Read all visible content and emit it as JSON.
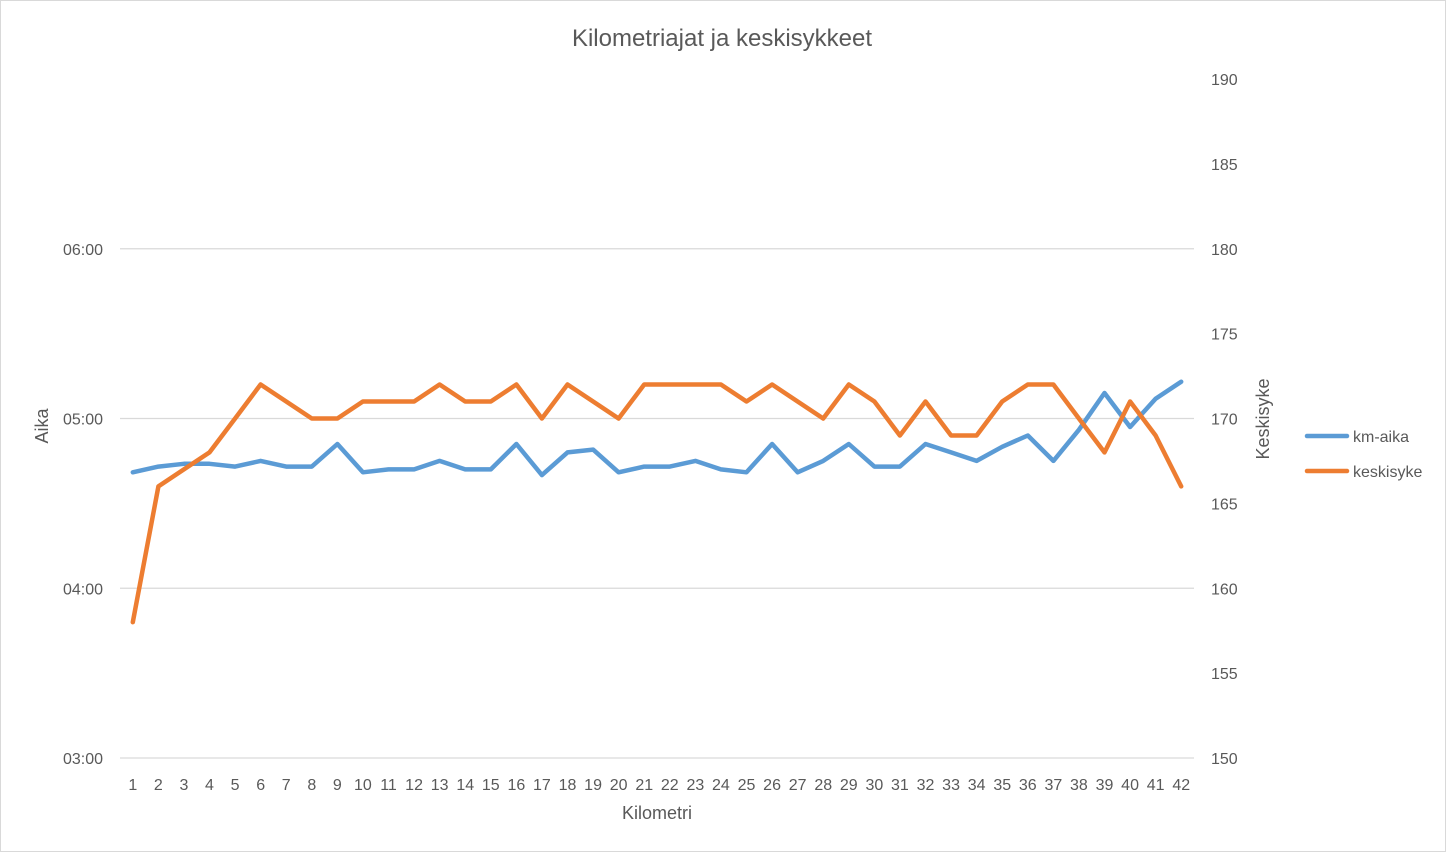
{
  "chart_data": {
    "type": "line",
    "title": "Kilometriajat ja keskisykkeet",
    "xlabel": "Kilometri",
    "ylabel": "Aika",
    "y2label": "Keskisyke",
    "x": [
      1,
      2,
      3,
      4,
      5,
      6,
      7,
      8,
      9,
      10,
      11,
      12,
      13,
      14,
      15,
      16,
      17,
      18,
      19,
      20,
      21,
      22,
      23,
      24,
      25,
      26,
      27,
      28,
      29,
      30,
      31,
      32,
      33,
      34,
      35,
      36,
      37,
      38,
      39,
      40,
      41,
      42
    ],
    "y_ticks": [
      "03:00",
      "04:00",
      "05:00",
      "06:00"
    ],
    "y_range_seconds": [
      180,
      420
    ],
    "y2_ticks": [
      150,
      155,
      160,
      165,
      170,
      175,
      180,
      185,
      190
    ],
    "y2_range": [
      150,
      190
    ],
    "legend_position": "right",
    "grid": "horizontal",
    "series": [
      {
        "name": "km-aika",
        "axis": "left",
        "color": "#5b9bd5",
        "values_seconds": [
          281,
          283,
          284,
          284,
          283,
          285,
          283,
          283,
          291,
          281,
          282,
          282,
          285,
          282,
          282,
          291,
          280,
          288,
          289,
          281,
          283,
          283,
          285,
          282,
          281,
          291,
          281,
          285,
          291,
          283,
          283,
          291,
          288,
          285,
          290,
          294,
          285,
          296,
          309,
          297,
          307,
          313
        ]
      },
      {
        "name": "keskisyke",
        "axis": "right",
        "color": "#ed7d31",
        "values": [
          158,
          166,
          167,
          168,
          170,
          172,
          171,
          170,
          170,
          171,
          171,
          171,
          172,
          171,
          171,
          172,
          170,
          172,
          171,
          170,
          172,
          172,
          172,
          172,
          171,
          172,
          171,
          170,
          172,
          171,
          169,
          171,
          169,
          169,
          171,
          172,
          172,
          170,
          168,
          171,
          169,
          166
        ]
      }
    ]
  }
}
